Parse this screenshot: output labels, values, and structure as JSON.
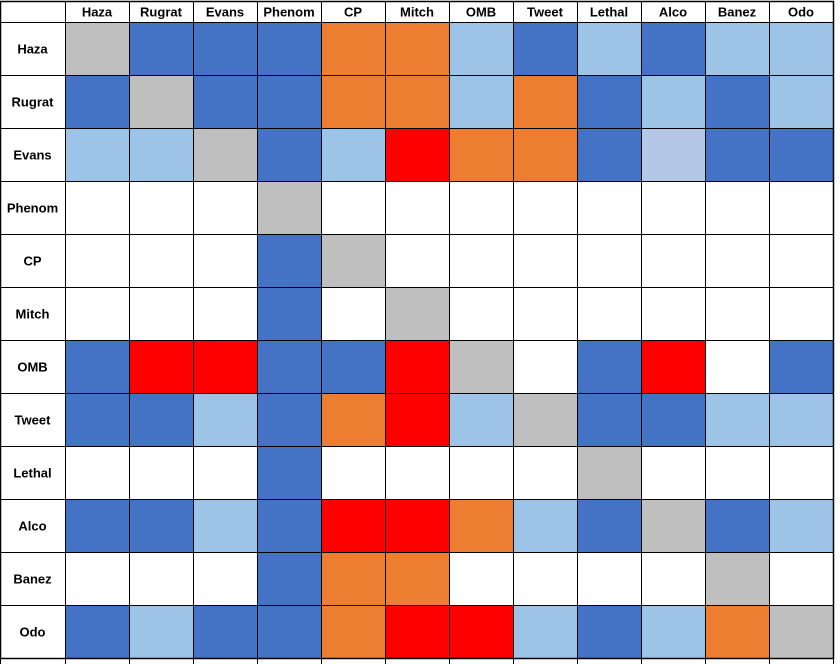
{
  "chart_data": {
    "type": "heatmap",
    "title": "",
    "columns": [
      "Haza",
      "Rugrat",
      "Evans",
      "Phenom",
      "CP",
      "Mitch",
      "OMB",
      "Tweet",
      "Lethal",
      "Alco",
      "Banez",
      "Odo"
    ],
    "rows": [
      "Haza",
      "Rugrat",
      "Evans",
      "Phenom",
      "CP",
      "Mitch",
      "OMB",
      "Tweet",
      "Lethal",
      "Alco",
      "Banez",
      "Odo"
    ],
    "palette": {
      "B": "#4472c4",
      "L": "#9dc3e6",
      "P": "#b4c7e7",
      "O": "#ed7d31",
      "R": "#ff0000",
      "G": "#bfbfbf",
      "W": "#ffffff"
    },
    "cells": [
      [
        "G",
        "B",
        "B",
        "B",
        "O",
        "O",
        "L",
        "B",
        "L",
        "B",
        "L",
        "L"
      ],
      [
        "B",
        "G",
        "B",
        "B",
        "O",
        "O",
        "L",
        "O",
        "B",
        "L",
        "B",
        "L"
      ],
      [
        "L",
        "L",
        "G",
        "B",
        "L",
        "R",
        "O",
        "O",
        "B",
        "P",
        "B",
        "B"
      ],
      [
        "W",
        "W",
        "W",
        "G",
        "W",
        "W",
        "W",
        "W",
        "W",
        "W",
        "W",
        "W"
      ],
      [
        "W",
        "W",
        "W",
        "B",
        "G",
        "W",
        "W",
        "W",
        "W",
        "W",
        "W",
        "W"
      ],
      [
        "W",
        "W",
        "W",
        "B",
        "W",
        "G",
        "W",
        "W",
        "W",
        "W",
        "W",
        "W"
      ],
      [
        "B",
        "R",
        "R",
        "B",
        "B",
        "R",
        "G",
        "W",
        "B",
        "R",
        "W",
        "B"
      ],
      [
        "B",
        "B",
        "L",
        "B",
        "O",
        "R",
        "L",
        "G",
        "B",
        "B",
        "L",
        "L"
      ],
      [
        "W",
        "W",
        "W",
        "B",
        "W",
        "W",
        "W",
        "W",
        "G",
        "W",
        "W",
        "W"
      ],
      [
        "B",
        "B",
        "L",
        "B",
        "R",
        "R",
        "O",
        "L",
        "B",
        "G",
        "B",
        "L"
      ],
      [
        "W",
        "W",
        "W",
        "B",
        "O",
        "O",
        "W",
        "W",
        "W",
        "W",
        "G",
        "W"
      ],
      [
        "B",
        "L",
        "B",
        "B",
        "O",
        "R",
        "R",
        "L",
        "B",
        "L",
        "O",
        "G"
      ]
    ],
    "grid": true,
    "legend": "none"
  }
}
